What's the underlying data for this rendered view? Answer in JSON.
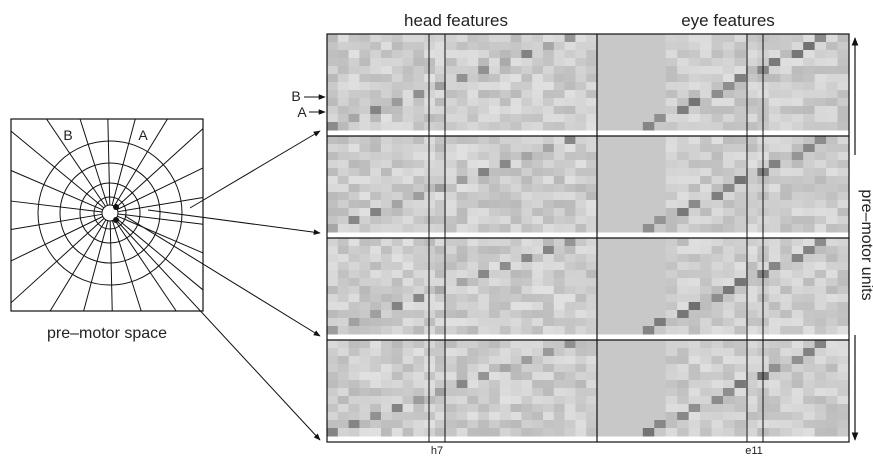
{
  "labels": {
    "head_features": "head features",
    "eye_features": "eye features",
    "premotor_space": "pre–motor space",
    "premotor_units": "pre–motor units",
    "h7": "h7",
    "e11": "e11",
    "point_b": "B",
    "point_a": "A",
    "sector_b": "B",
    "sector_a": "A"
  },
  "heatmap": {
    "rows": 4,
    "highlight_columns": [
      "h7",
      "e11"
    ]
  },
  "colors": {
    "background": "#ffffff",
    "line": "#111111",
    "cell_base": "#cccccc",
    "eye_background": "#c8c8c8"
  }
}
